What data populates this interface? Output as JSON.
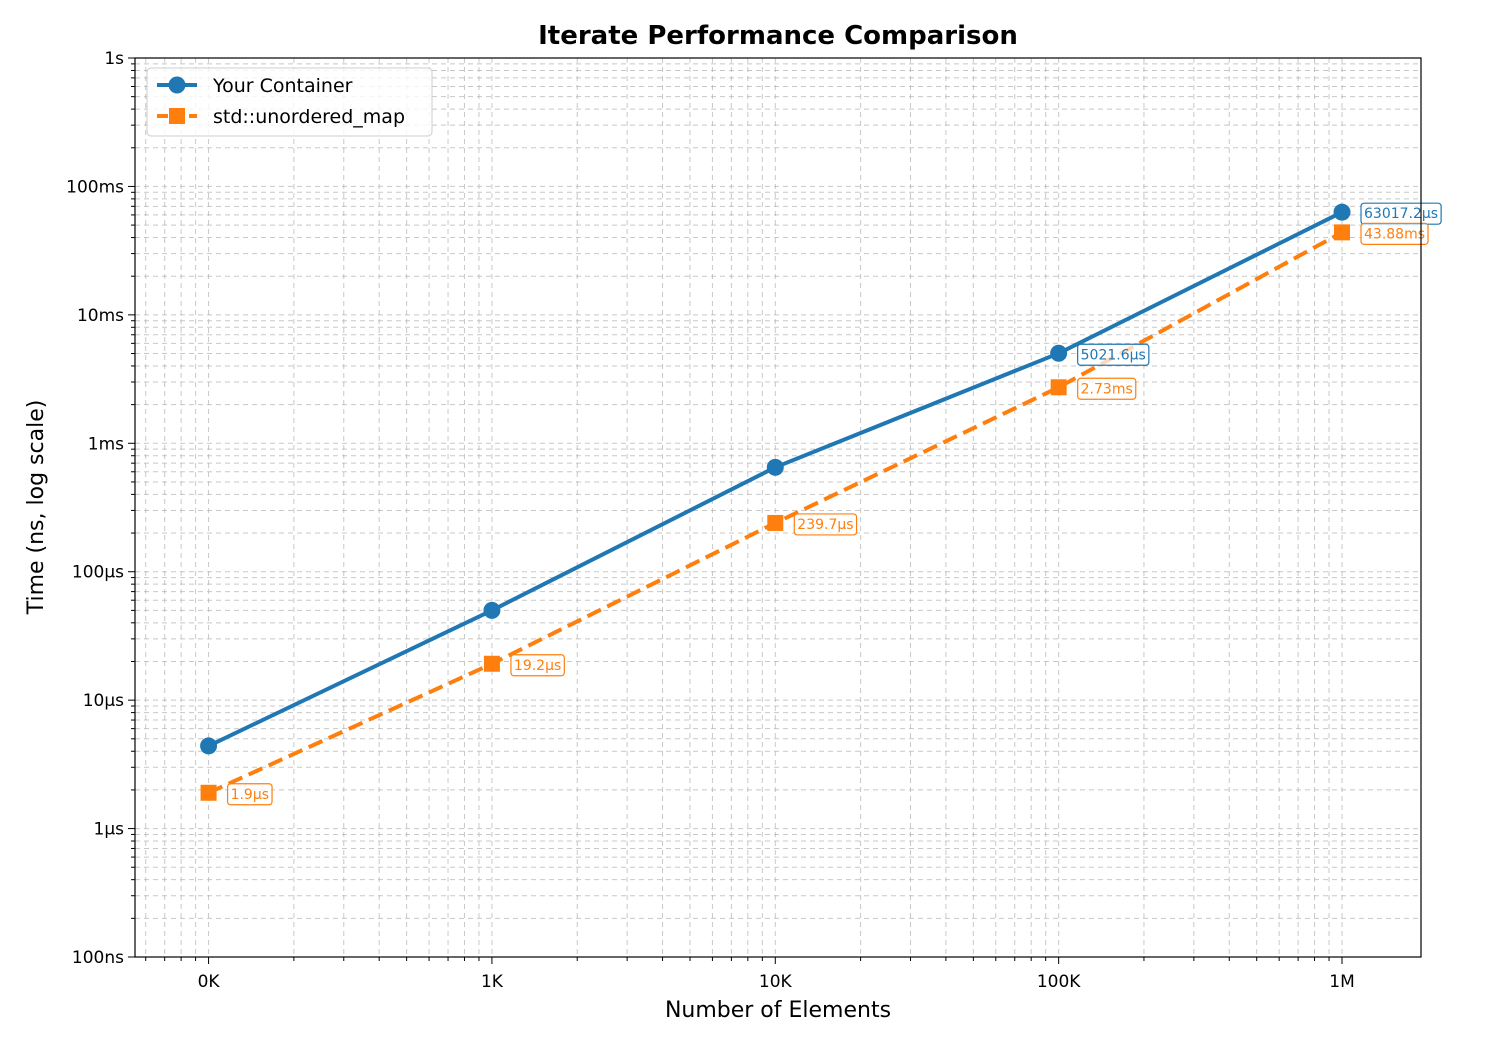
{
  "chart_data": {
    "type": "line",
    "title": "Iterate Performance Comparison",
    "xlabel": "Number of Elements",
    "ylabel": "Time (ns, log scale)",
    "x_scale": "log",
    "y_scale": "log",
    "x": [
      100,
      1000,
      10000,
      100000,
      1000000
    ],
    "x_tick_labels": [
      "0K",
      "1K",
      "10K",
      "100K",
      "1M"
    ],
    "xlim": [
      55,
      1900000
    ],
    "ylim": [
      100,
      1000000000
    ],
    "y_ticks": [
      100,
      1000,
      10000,
      100000,
      1000000,
      10000000,
      100000000,
      1000000000
    ],
    "y_tick_labels": [
      "100ns",
      "1µs",
      "10µs",
      "100µs",
      "1ms",
      "10ms",
      "100ms",
      "1s"
    ],
    "grid": true,
    "legend_position": "top-left",
    "series": [
      {
        "name": "Your Container",
        "color": "#1f77b4",
        "marker": "circle",
        "line_style": "solid",
        "values": [
          4400,
          50000,
          650000,
          5021600,
          63017200
        ],
        "labels": [
          "",
          "",
          "",
          "5021.6µs",
          "63017.2µs"
        ]
      },
      {
        "name": "std::unordered_map",
        "color": "#ff7f0e",
        "marker": "square",
        "line_style": "dashed",
        "values": [
          1900,
          19200,
          239700,
          2730000,
          43880000
        ],
        "labels": [
          "1.9µs",
          "19.2µs",
          "239.7µs",
          "2.73ms",
          "43.88ms"
        ]
      }
    ]
  }
}
